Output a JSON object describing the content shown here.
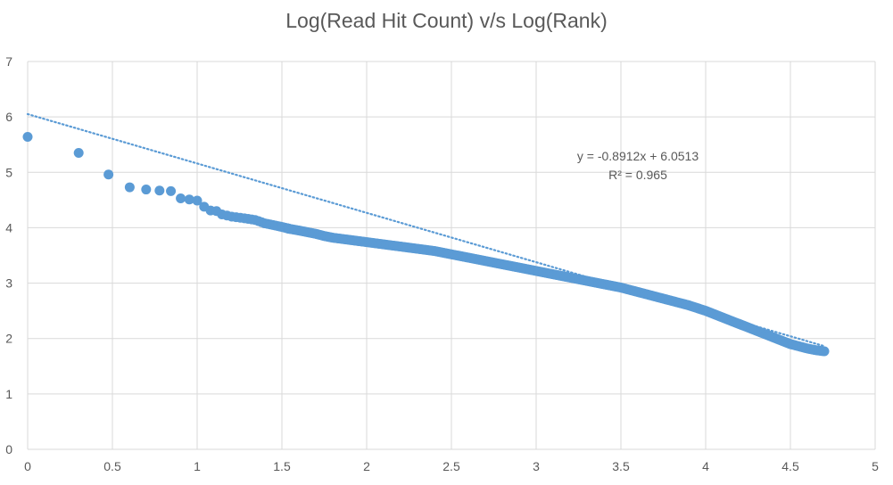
{
  "chart_data": {
    "type": "scatter",
    "title": "Log(Read Hit Count) v/s Log(Rank)",
    "xlabel": "",
    "ylabel": "",
    "xlim": [
      0,
      5
    ],
    "ylim": [
      0,
      7
    ],
    "x_ticks": [
      "0",
      "0.5",
      "1",
      "1.5",
      "2",
      "2.5",
      "3",
      "3.5",
      "4",
      "4.5",
      "5"
    ],
    "y_ticks": [
      "0",
      "1",
      "2",
      "3",
      "4",
      "5",
      "6",
      "7"
    ],
    "grid": true,
    "marker_color": "#5b9bd5",
    "series": [
      {
        "values": [
          [
            0,
            5.64
          ],
          [
            0.301,
            5.35
          ],
          [
            0.477,
            4.96
          ],
          [
            0.602,
            4.73
          ],
          [
            0.699,
            4.69
          ],
          [
            0.778,
            4.67
          ],
          [
            0.845,
            4.66
          ],
          [
            0.903,
            4.53
          ],
          [
            0.954,
            4.51
          ],
          [
            1.0,
            4.49
          ],
          [
            1.041,
            4.38
          ],
          [
            1.079,
            4.31
          ],
          [
            1.114,
            4.3
          ],
          [
            1.146,
            4.24
          ],
          [
            1.176,
            4.22
          ],
          [
            1.204,
            4.2
          ],
          [
            1.23,
            4.19
          ],
          [
            1.255,
            4.18
          ],
          [
            1.279,
            4.17
          ],
          [
            1.301,
            4.16
          ],
          [
            1.322,
            4.15
          ],
          [
            1.342,
            4.14
          ],
          [
            1.362,
            4.12
          ],
          [
            1.38,
            4.1
          ],
          [
            1.398,
            4.08
          ],
          [
            1.415,
            4.07
          ],
          [
            1.431,
            4.06
          ],
          [
            1.447,
            4.05
          ],
          [
            1.462,
            4.04
          ],
          [
            1.477,
            4.03
          ],
          [
            1.491,
            4.02
          ],
          [
            1.505,
            4.01
          ],
          [
            1.519,
            4.0
          ],
          [
            1.532,
            3.99
          ],
          [
            1.544,
            3.98
          ],
          [
            1.6,
            3.95
          ],
          [
            1.65,
            3.92
          ],
          [
            1.7,
            3.89
          ],
          [
            1.75,
            3.85
          ],
          [
            1.8,
            3.82
          ],
          [
            1.85,
            3.8
          ],
          [
            1.9,
            3.78
          ],
          [
            1.95,
            3.76
          ],
          [
            2.0,
            3.74
          ],
          [
            2.05,
            3.72
          ],
          [
            2.1,
            3.7
          ],
          [
            2.15,
            3.68
          ],
          [
            2.2,
            3.66
          ],
          [
            2.25,
            3.64
          ],
          [
            2.3,
            3.62
          ],
          [
            2.35,
            3.6
          ],
          [
            2.4,
            3.58
          ],
          [
            2.45,
            3.55
          ],
          [
            2.5,
            3.52
          ],
          [
            2.55,
            3.49
          ],
          [
            2.6,
            3.46
          ],
          [
            2.65,
            3.43
          ],
          [
            2.7,
            3.4
          ],
          [
            2.75,
            3.37
          ],
          [
            2.8,
            3.34
          ],
          [
            2.85,
            3.31
          ],
          [
            2.9,
            3.28
          ],
          [
            2.95,
            3.25
          ],
          [
            3.0,
            3.22
          ],
          [
            3.05,
            3.19
          ],
          [
            3.1,
            3.16
          ],
          [
            3.15,
            3.13
          ],
          [
            3.2,
            3.1
          ],
          [
            3.25,
            3.07
          ],
          [
            3.3,
            3.04
          ],
          [
            3.35,
            3.01
          ],
          [
            3.4,
            2.98
          ],
          [
            3.45,
            2.95
          ],
          [
            3.5,
            2.92
          ],
          [
            3.55,
            2.88
          ],
          [
            3.6,
            2.84
          ],
          [
            3.65,
            2.8
          ],
          [
            3.7,
            2.76
          ],
          [
            3.75,
            2.72
          ],
          [
            3.8,
            2.68
          ],
          [
            3.85,
            2.64
          ],
          [
            3.9,
            2.6
          ],
          [
            3.95,
            2.55
          ],
          [
            4.0,
            2.5
          ],
          [
            4.05,
            2.44
          ],
          [
            4.1,
            2.38
          ],
          [
            4.15,
            2.32
          ],
          [
            4.2,
            2.26
          ],
          [
            4.25,
            2.2
          ],
          [
            4.3,
            2.14
          ],
          [
            4.35,
            2.08
          ],
          [
            4.4,
            2.02
          ],
          [
            4.45,
            1.96
          ],
          [
            4.5,
            1.9
          ],
          [
            4.55,
            1.86
          ],
          [
            4.6,
            1.82
          ],
          [
            4.65,
            1.79
          ],
          [
            4.7,
            1.77
          ]
        ]
      }
    ],
    "trendline": {
      "type": "linear",
      "slope": -0.8912,
      "intercept": 6.0513,
      "x_range": [
        0,
        4.7
      ],
      "color": "#5b9bd5",
      "equation_label": "y = -0.8912x + 6.0513",
      "r2_label": "R² = 0.965"
    }
  }
}
